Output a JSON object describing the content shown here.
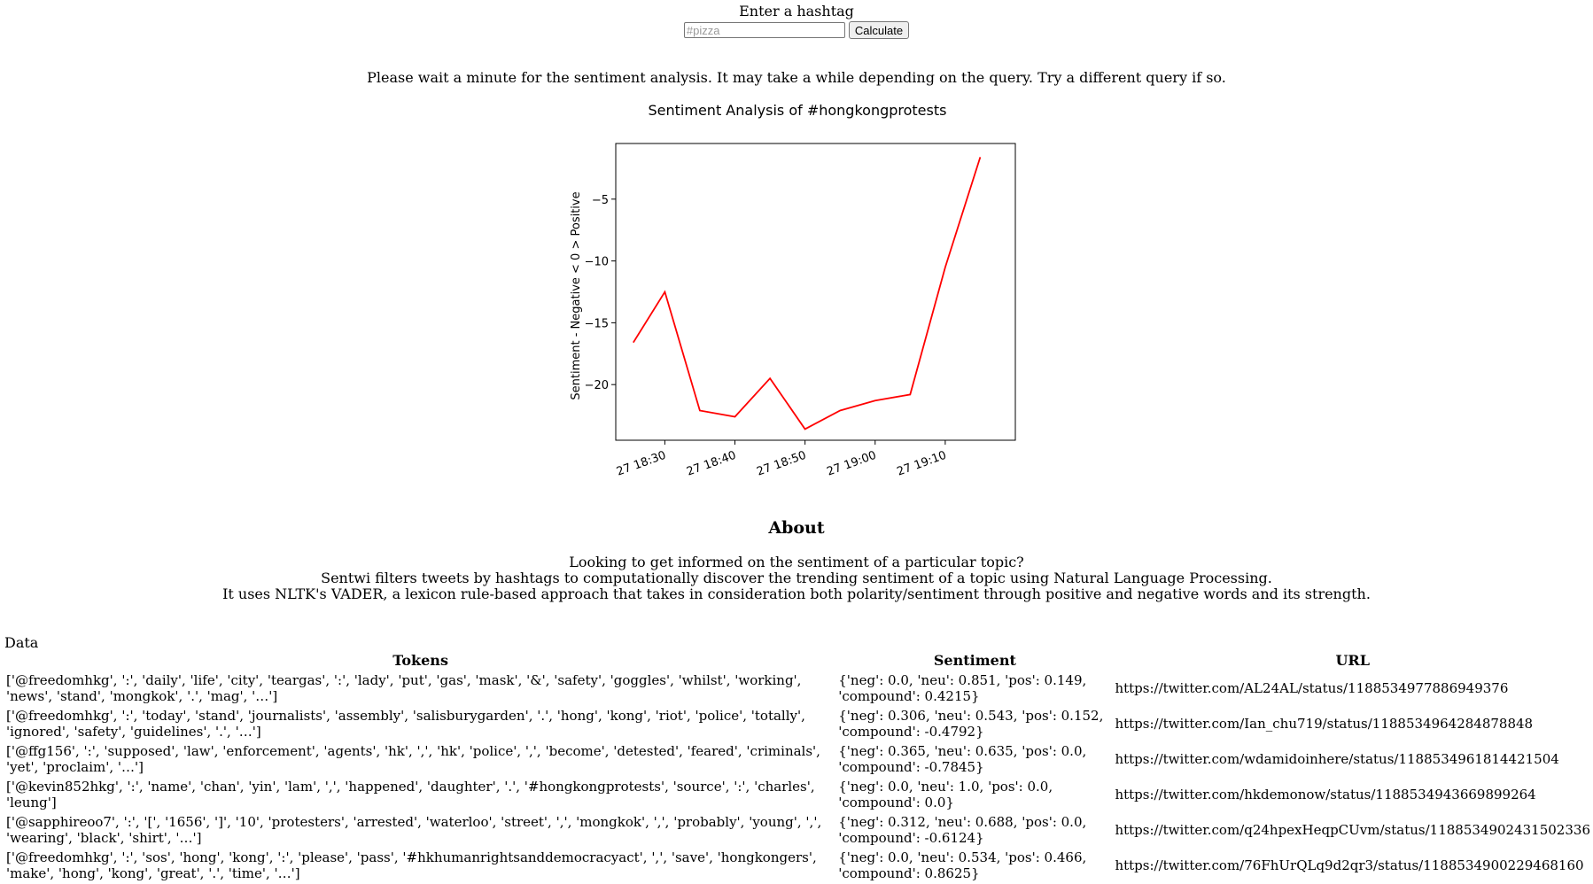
{
  "form": {
    "label": "Enter a hashtag",
    "input_value": "",
    "input_placeholder": "#pizza",
    "button_label": "Calculate"
  },
  "wait_note": "Please wait a minute for the sentiment analysis. It may take a while depending on the query. Try a different query if so.",
  "chart_data": {
    "type": "line",
    "title": "Sentiment Analysis of #hongkongprotests",
    "xlabel": "",
    "ylabel": "Sentiment - Negative < 0 > Positive",
    "x_ticks": [
      "27 18:30",
      "27 18:40",
      "27 18:50",
      "27 19:00",
      "27 19:10"
    ],
    "x": [
      "27 18:25:30",
      "27 18:30",
      "27 18:35",
      "27 18:40",
      "27 18:45",
      "27 18:50",
      "27 18:55",
      "27 19:00",
      "27 19:05",
      "27 19:10",
      "27 19:15"
    ],
    "x_minutes": [
      25.5,
      30,
      35,
      40,
      45,
      50,
      55,
      60,
      65,
      70,
      75
    ],
    "xlim_minutes": [
      23,
      80
    ],
    "y_ticks": [
      -5,
      -10,
      -15,
      -20
    ],
    "series": [
      {
        "name": "",
        "color": "#ff0000",
        "values": [
          -16.6,
          -12.5,
          -22.1,
          -22.6,
          -19.5,
          -23.6,
          -22.1,
          -21.3,
          -20.8,
          -10.5,
          -1.6
        ]
      }
    ],
    "ylim": [
      -24.5,
      -0.5
    ],
    "grid": false
  },
  "about": {
    "title": "About",
    "lines": [
      "Looking to get informed on the sentiment of a particular topic?",
      "Sentwi filters tweets by hashtags to computationally discover the trending sentiment of a topic using Natural Language Processing.",
      "It uses NLTK's VADER, a lexicon rule-based approach that takes in consideration both polarity/sentiment through positive and negative words and its strength."
    ]
  },
  "data_section": {
    "label": "Data",
    "columns": [
      "Tokens",
      "Sentiment",
      "URL"
    ],
    "rows": [
      {
        "tokens": "['@freedomhkg', ':', 'daily', 'life', 'city', 'teargas', ':', 'lady', 'put', 'gas', 'mask', '&', 'safety', 'goggles', 'whilst', 'working', 'news', 'stand', 'mongkok', '.', 'mag', '…']",
        "sentiment": "{'neg': 0.0, 'neu': 0.851, 'pos': 0.149, 'compound': 0.4215}",
        "url": "https://twitter.com/AL24AL/status/1188534977886949376"
      },
      {
        "tokens": "['@freedomhkg', ':', 'today', 'stand', 'journalists', 'assembly', 'salisburygarden', '.', 'hong', 'kong', 'riot', 'police', 'totally', 'ignored', 'safety', 'guidelines', '.', '…']",
        "sentiment": "{'neg': 0.306, 'neu': 0.543, 'pos': 0.152, 'compound': -0.4792}",
        "url": "https://twitter.com/Ian_chu719/status/1188534964284878848"
      },
      {
        "tokens": "['@ffg156', ':', 'supposed', 'law', 'enforcement', 'agents', 'hk', ',', 'hk', 'police', ',', 'become', 'detested', 'feared', 'criminals', 'yet', 'proclaim', '…']",
        "sentiment": "{'neg': 0.365, 'neu': 0.635, 'pos': 0.0, 'compound': -0.7845}",
        "url": "https://twitter.com/wdamidoinhere/status/1188534961814421504"
      },
      {
        "tokens": "['@kevin852hkg', ':', 'name', 'chan', 'yin', 'lam', ',', 'happened', 'daughter', '.', '#hongkongprotests', 'source', ':', 'charles', 'leung']",
        "sentiment": "{'neg': 0.0, 'neu': 1.0, 'pos': 0.0, 'compound': 0.0}",
        "url": "https://twitter.com/hkdemonow/status/1188534943669899264"
      },
      {
        "tokens": "['@sapphireoo7', ':', '[', '1656', ']', '10', 'protesters', 'arrested', 'waterloo', 'street', ',', 'mongkok', ',', 'probably', 'young', ',', 'wearing', 'black', 'shirt', '…']",
        "sentiment": "{'neg': 0.312, 'neu': 0.688, 'pos': 0.0, 'compound': -0.6124}",
        "url": "https://twitter.com/q24hpexHeqpCUvm/status/1188534902431502336"
      },
      {
        "tokens": "['@freedomhkg', ':', 'sos', 'hong', 'kong', ':', 'please', 'pass', '#hkhumanrightsanddemocracyact', ',', 'save', 'hongkongers', 'make', 'hong', 'kong', 'great', '.', 'time', '…']",
        "sentiment": "{'neg': 0.0, 'neu': 0.534, 'pos': 0.466, 'compound': 0.8625}",
        "url": "https://twitter.com/76FhUrQLq9d2qr3/status/1188534900229468160"
      }
    ]
  }
}
